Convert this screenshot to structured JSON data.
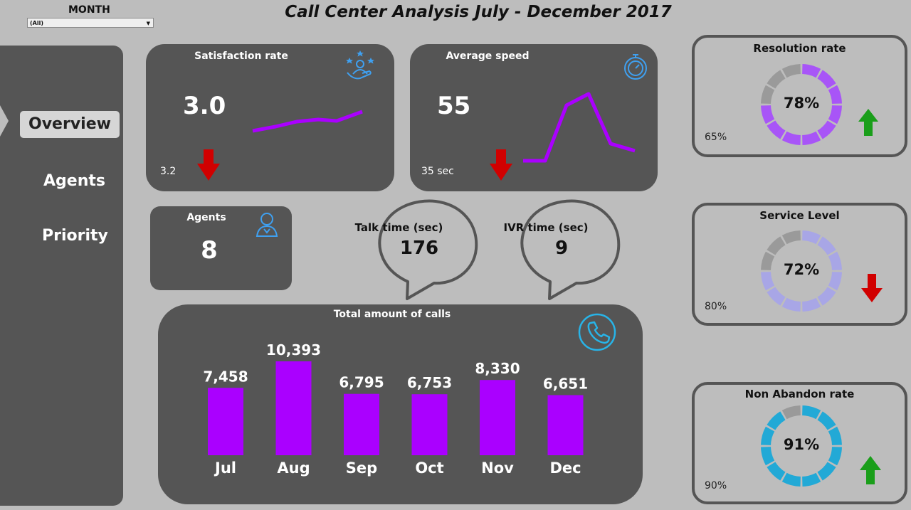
{
  "header": {
    "title": "Call Center Analysis July - December 2017"
  },
  "filter": {
    "label": "MONTH",
    "value": "(All)"
  },
  "sidebar": {
    "items": [
      {
        "label": "Overview",
        "active": true
      },
      {
        "label": "Agents",
        "active": false
      },
      {
        "label": "Priority",
        "active": false
      }
    ]
  },
  "satisfaction": {
    "title": "Satisfaction rate",
    "value": "3.0",
    "previous": "3.2",
    "trend": "down",
    "icon": "satisfaction-stars-icon"
  },
  "speed": {
    "title": "Average speed",
    "value": "55",
    "previous": "35 sec",
    "trend": "down",
    "icon": "stopwatch-icon"
  },
  "agents": {
    "title": "Agents",
    "value": "8",
    "icon": "agent-headset-icon"
  },
  "talk_time": {
    "title": "Talk time (sec)",
    "value": "176"
  },
  "ivr_time": {
    "title": "IVR time (sec)",
    "value": "9"
  },
  "calls": {
    "title": "Total amount of calls",
    "icon": "phone-icon"
  },
  "resolution": {
    "title": "Resolution rate",
    "value": "78%",
    "target": "65%",
    "trend": "up",
    "fraction": 0.78,
    "color": "#a855f7"
  },
  "service": {
    "title": "Service Level",
    "value": "72%",
    "target": "80%",
    "trend": "down",
    "fraction": 0.72,
    "color": "#a8a6e6"
  },
  "non_abandon": {
    "title": "Non Abandon rate",
    "value": "91%",
    "target": "90%",
    "trend": "up",
    "fraction": 0.91,
    "color": "#22a9d6"
  },
  "colors": {
    "accent": "#aa00ff",
    "card": "#555555",
    "background": "#bdbdbd",
    "up": "#1a9e1a",
    "down": "#d10000"
  },
  "chart_data": {
    "type": "bar",
    "title": "Total amount of calls",
    "categories": [
      "Jul",
      "Aug",
      "Sep",
      "Oct",
      "Nov",
      "Dec"
    ],
    "values": [
      7458,
      10393,
      6795,
      6753,
      8330,
      6651
    ],
    "labels": [
      "7,458",
      "10,393",
      "6,795",
      "6,753",
      "8,330",
      "6,651"
    ]
  }
}
